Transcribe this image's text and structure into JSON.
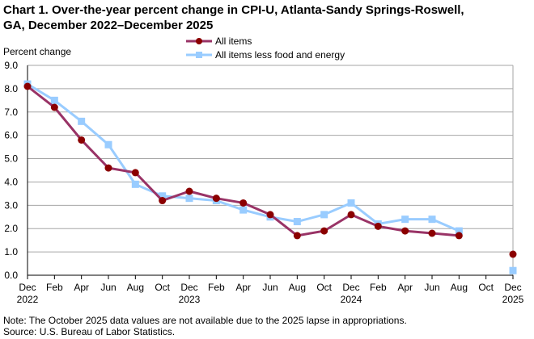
{
  "chart_data": {
    "type": "line",
    "title_lines": [
      "Chart 1. Over-the-year percent change in CPI-U, Atlanta-Sandy Springs-Roswell,",
      "GA, December 2022–December  2025"
    ],
    "ylabel": "Percent change",
    "ylim": [
      0,
      9
    ],
    "yticks": [
      "0.0",
      "1.0",
      "2.0",
      "3.0",
      "4.0",
      "5.0",
      "6.0",
      "7.0",
      "8.0",
      "9.0"
    ],
    "x": [
      "Dec 2022",
      "Feb 2023",
      "Apr 2023",
      "Jun 2023",
      "Aug 2023",
      "Oct 2023",
      "Dec 2023",
      "Feb 2024",
      "Apr 2024",
      "Jun 2024",
      "Aug 2024",
      "Oct 2024",
      "Dec 2024",
      "Feb 2025",
      "Apr 2025",
      "Jun 2025",
      "Aug 2025",
      "Oct 2025",
      "Dec 2025"
    ],
    "xtick_labels": [
      "Dec",
      "Feb",
      "Apr",
      "Jun",
      "Aug",
      "Oct",
      "Dec",
      "Feb",
      "Apr",
      "Jun",
      "Aug",
      "Oct",
      "Dec",
      "Feb",
      "Apr",
      "Jun",
      "Aug",
      "Oct",
      "Dec"
    ],
    "xtick_years": {
      "0": "2022",
      "6": "2023",
      "12": "2024",
      "18": "2025"
    },
    "grid": true,
    "legend_placement": "top-center",
    "series": [
      {
        "name": "All items",
        "color": "#993366",
        "marker_color": "#8B0000",
        "marker": "circle",
        "values": [
          8.1,
          7.2,
          5.8,
          4.6,
          4.4,
          3.2,
          3.6,
          3.3,
          3.1,
          2.6,
          1.7,
          1.9,
          2.6,
          2.1,
          1.9,
          1.8,
          1.7,
          null,
          0.9
        ]
      },
      {
        "name": "All items less food and energy",
        "color": "#99CCFF",
        "marker_color": "#99CCFF",
        "marker": "square",
        "values": [
          8.2,
          7.5,
          6.6,
          5.6,
          3.9,
          3.4,
          3.3,
          3.2,
          2.8,
          2.5,
          2.3,
          2.6,
          3.1,
          2.2,
          2.4,
          2.4,
          1.9,
          null,
          0.2
        ]
      }
    ]
  },
  "notes": {
    "note": "Note: The October 2025 data values  are not available  due to the 2025 lapse in appropriations.",
    "source": "Source: U.S. Bureau  of Labor Statistics."
  }
}
